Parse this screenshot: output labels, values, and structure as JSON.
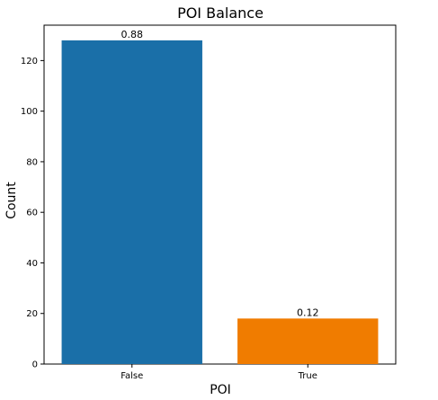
{
  "chart_data": {
    "type": "bar",
    "title": "POI Balance",
    "xlabel": "POI",
    "ylabel": "Count",
    "categories": [
      "False",
      "True"
    ],
    "values": [
      128,
      18
    ],
    "data_labels": [
      "0.88",
      "0.12"
    ],
    "colors": [
      "#1a6fa8",
      "#f07c00"
    ],
    "ylim": [
      0,
      134
    ],
    "yticks": [
      0,
      20,
      40,
      60,
      80,
      100,
      120
    ],
    "grid": false,
    "legend": "none"
  }
}
